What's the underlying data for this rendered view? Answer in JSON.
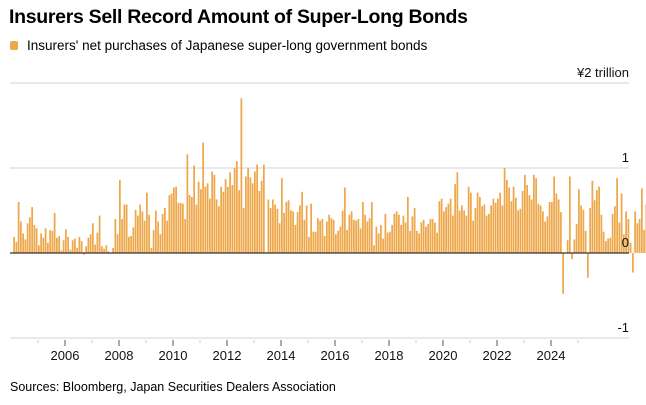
{
  "title": "Insurers Sell Record Amount of Super-Long Bonds",
  "legend": [
    {
      "label": "Insurers' net purchases of Japanese super-long government bonds",
      "color": "#EEA84B"
    }
  ],
  "source": "Sources: Bloomberg, Japan Securities Dealers Association",
  "chart_data": {
    "type": "bar",
    "title": "Insurers Sell Record Amount of Super-Long Bonds",
    "series_name": "Insurers' net purchases of Japanese super-long government bonds",
    "unit_label": "¥2 trillion",
    "xlabel": "",
    "ylabel": "¥ trillion",
    "ylim": [
      -1,
      2
    ],
    "yticks": [
      {
        "value": 2,
        "label": "¥2 trillion"
      },
      {
        "value": 1,
        "label": "1"
      },
      {
        "value": 0,
        "label": "0"
      },
      {
        "value": -1,
        "label": "-1"
      }
    ],
    "xticks": [
      "2006",
      "2008",
      "2010",
      "2012",
      "2014",
      "2016",
      "2018",
      "2020",
      "2022",
      "2024"
    ],
    "grid": true,
    "legend_position": "top-left",
    "bar_color": "#EEA84B",
    "start": "2004-02",
    "frequency": "monthly",
    "values": [
      0.19,
      0.13,
      0.6,
      0.37,
      0.23,
      0.16,
      0.35,
      0.42,
      0.54,
      0.33,
      0.29,
      0.09,
      0.23,
      0.18,
      0.29,
      0.12,
      0.27,
      0.26,
      0.47,
      0.18,
      0.2,
      0.03,
      0.15,
      0.28,
      0.19,
      0.04,
      0.15,
      0.17,
      0.06,
      0.19,
      0.14,
      -0.02,
      0.08,
      0.18,
      0.22,
      0.35,
      0.1,
      0.24,
      0.44,
      0.08,
      0.05,
      0.09,
      0.02,
      0.0,
      0.06,
      0.4,
      0.22,
      0.86,
      0.4,
      0.57,
      0.57,
      0.19,
      0.2,
      0.3,
      0.51,
      0.44,
      0.57,
      0.49,
      0.38,
      0.71,
      0.45,
      0.06,
      0.27,
      0.5,
      0.37,
      0.22,
      0.46,
      0.53,
      0.38,
      0.68,
      0.7,
      0.77,
      0.78,
      0.59,
      0.59,
      0.58,
      0.4,
      1.16,
      0.68,
      0.66,
      1.03,
      0.57,
      0.84,
      0.75,
      1.3,
      0.78,
      0.82,
      0.64,
      0.96,
      0.92,
      0.63,
      0.55,
      0.78,
      0.72,
      0.87,
      0.78,
      0.95,
      0.8,
      1.0,
      1.08,
      0.74,
      1.82,
      0.53,
      0.9,
      1.0,
      0.89,
      0.82,
      0.96,
      1.04,
      0.73,
      0.85,
      1.04,
      0.01,
      0.63,
      0.53,
      0.63,
      0.57,
      0.52,
      0.35,
      0.88,
      0.47,
      0.6,
      0.62,
      0.5,
      0.49,
      0.33,
      0.48,
      0.56,
      0.72,
      0.39,
      0.56,
      0.19,
      0.58,
      0.25,
      0.25,
      0.41,
      0.38,
      0.4,
      0.2,
      0.37,
      0.45,
      0.41,
      0.39,
      0.22,
      0.26,
      0.31,
      0.5,
      0.77,
      0.27,
      0.45,
      0.49,
      0.39,
      0.38,
      0.4,
      0.29,
      0.6,
      0.45,
      0.37,
      0.41,
      0.6,
      0.09,
      0.31,
      0.23,
      0.33,
      0.17,
      0.46,
      0.24,
      0.25,
      0.33,
      0.46,
      0.49,
      0.45,
      0.33,
      0.44,
      0.36,
      0.66,
      0.26,
      0.43,
      0.53,
      0.26,
      0.23,
      0.36,
      0.39,
      0.31,
      0.34,
      0.4,
      0.4,
      0.36,
      0.24,
      0.61,
      0.64,
      0.49,
      0.54,
      0.58,
      0.64,
      0.44,
      0.81,
      0.95,
      0.5,
      0.56,
      0.5,
      0.44,
      0.78,
      0.71,
      0.38,
      0.53,
      0.71,
      0.66,
      0.55,
      0.57,
      0.44,
      0.46,
      0.56,
      0.64,
      0.59,
      0.64,
      0.71,
      0.56,
      1.0,
      0.86,
      0.77,
      0.61,
      0.78,
      0.65,
      0.5,
      0.52,
      0.73,
      0.92,
      0.8,
      0.68,
      0.63,
      0.92,
      0.88,
      0.58,
      0.56,
      0.49,
      0.37,
      0.43,
      0.6,
      0.6,
      0.9,
      0.7,
      0.63,
      0.48,
      -0.48,
      0.0,
      0.15,
      0.9,
      -0.07,
      0.16,
      0.34,
      0.75,
      0.56,
      0.51,
      0.26,
      -0.29,
      0.53,
      0.85,
      0.62,
      0.74,
      0.78,
      0.45,
      0.25,
      0.14,
      0.17,
      0.18,
      0.46,
      0.55,
      0.88,
      0.36,
      0.7,
      0.22,
      0.49,
      0.4,
      0.12,
      -0.23,
      0.49,
      0.35,
      0.4,
      0.76,
      0.27,
      0.57,
      0.75,
      -0.74,
      -0.4,
      0.04,
      0.07,
      0.76,
      -0.16,
      0.63,
      -0.02,
      -0.09,
      -0.29,
      -0.36,
      -0.26,
      -0.88
    ]
  }
}
